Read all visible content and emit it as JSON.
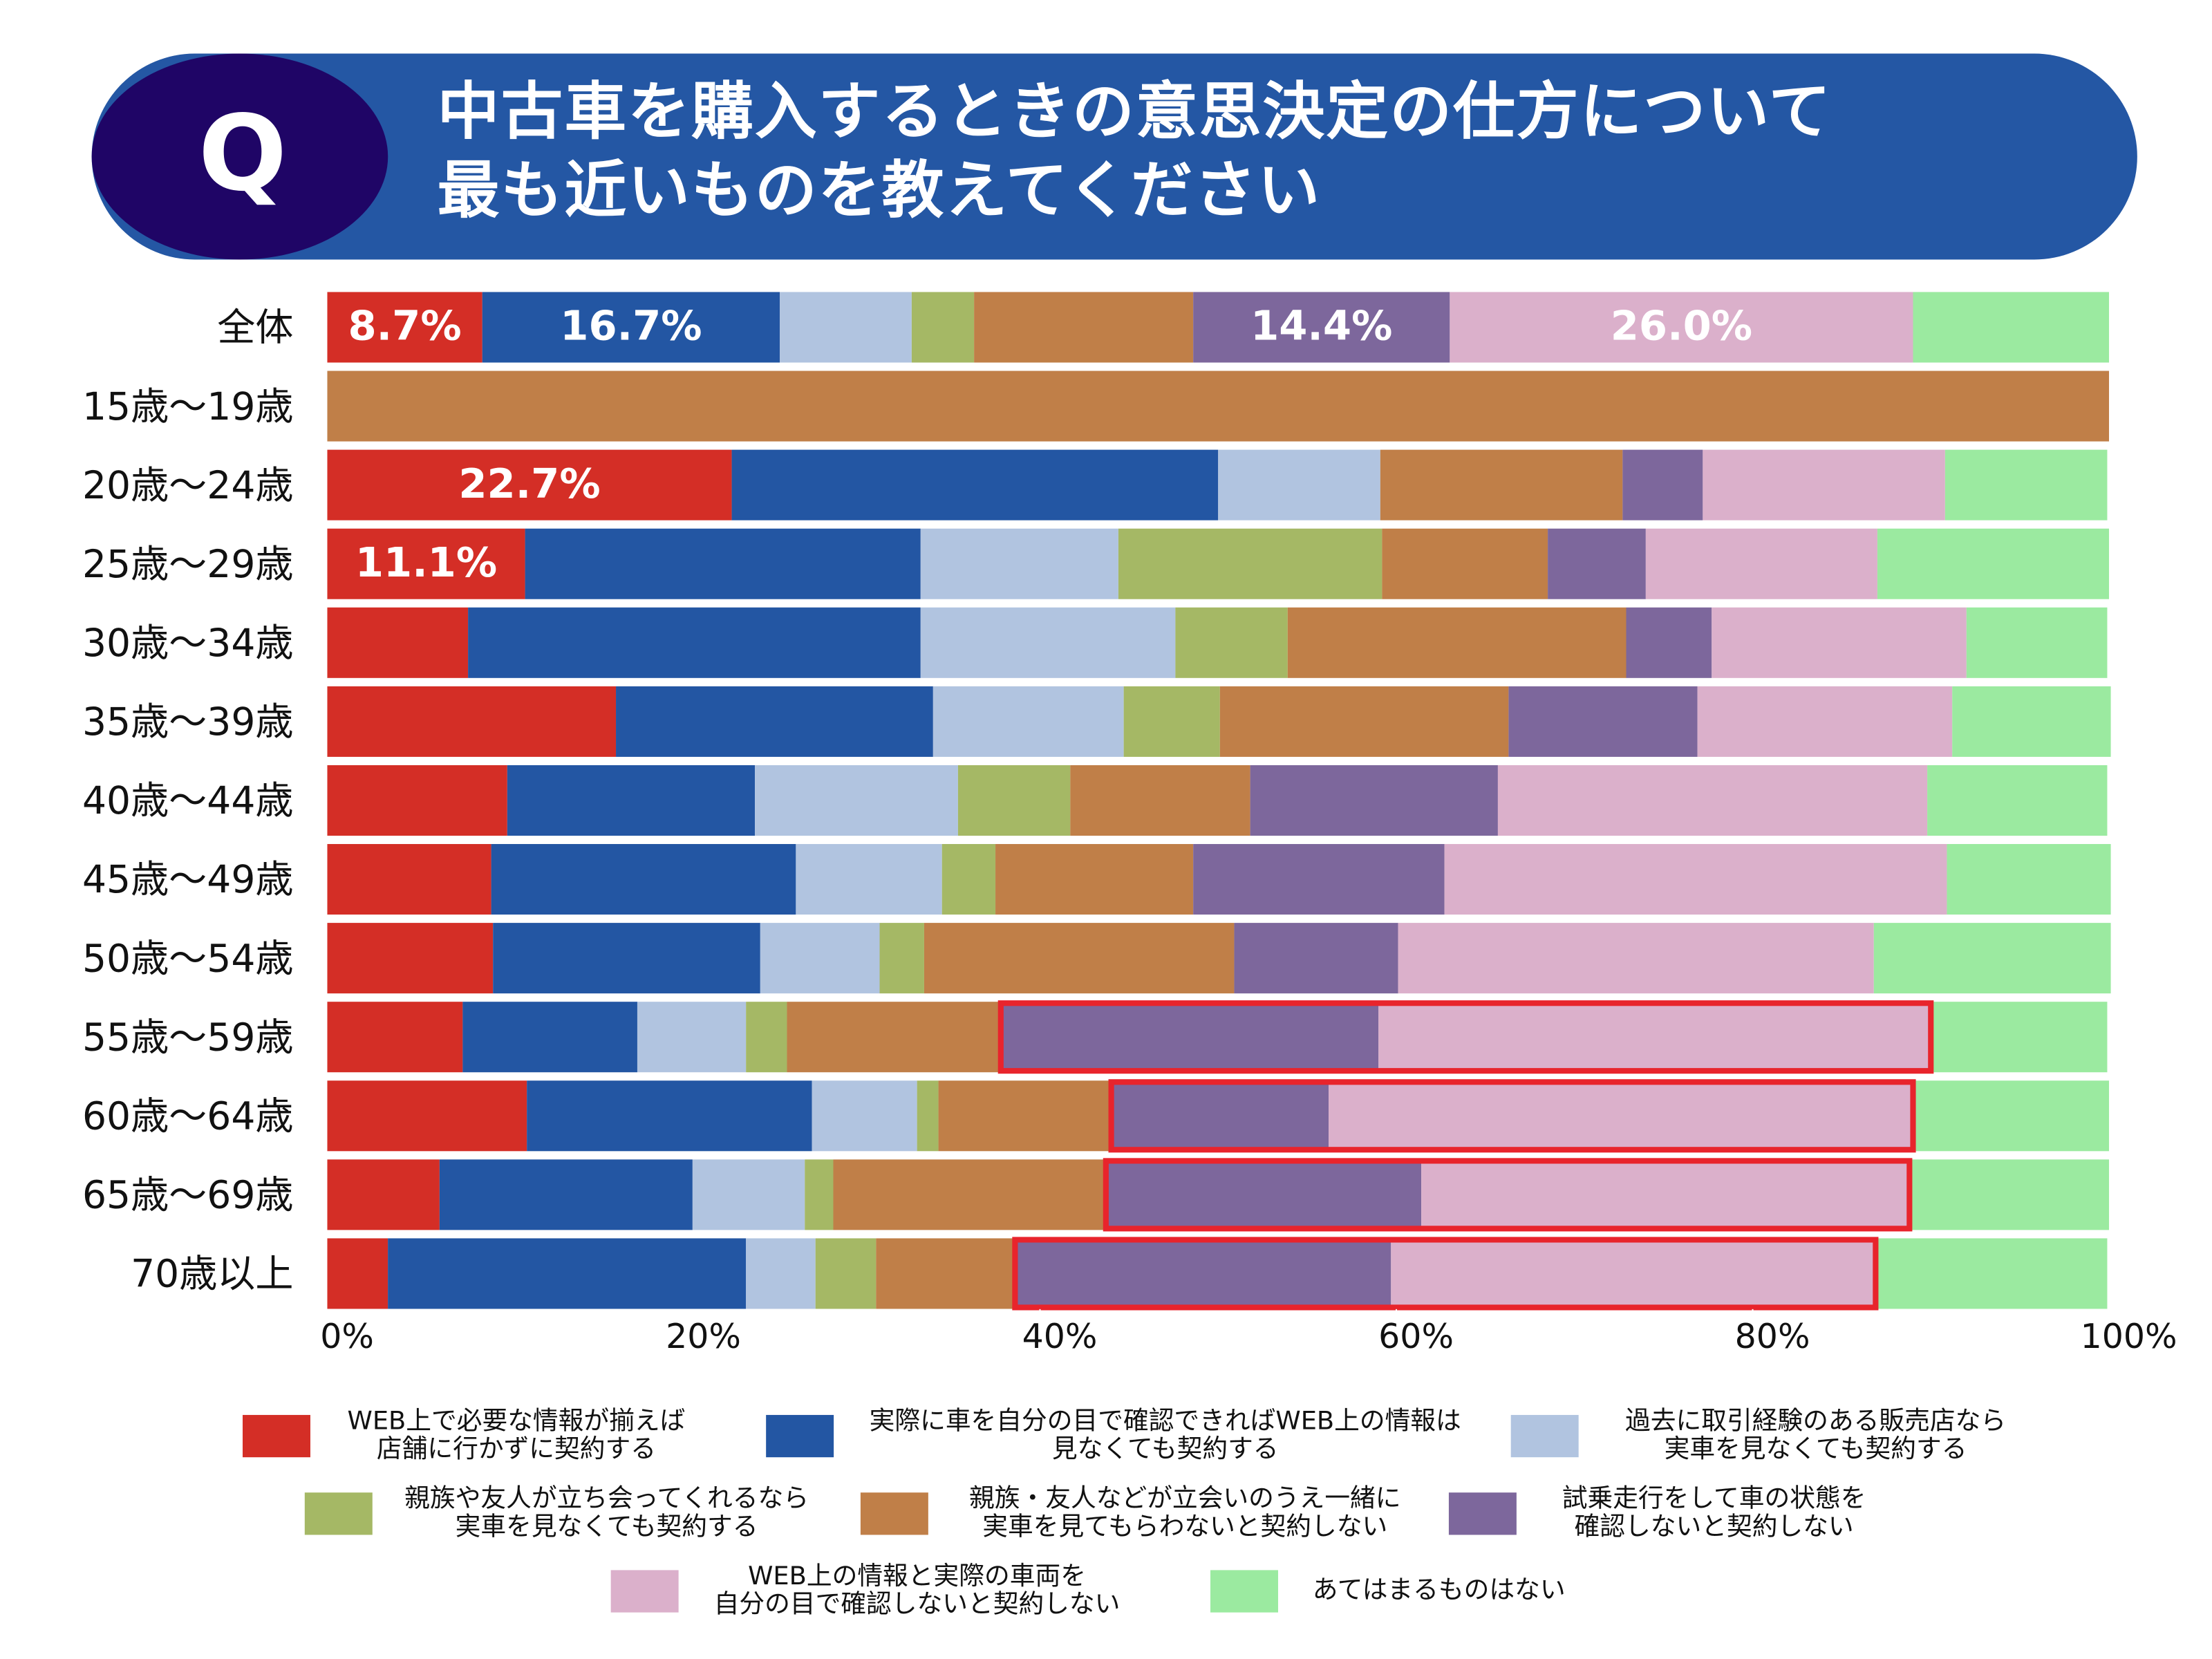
{
  "badge": "Q",
  "chart_data": {
    "type": "stacked_barh",
    "title": "中古車を購入するときの意思決定の仕方について\n最も近いものを教えてください",
    "categories": [
      "全体",
      "15歳〜19歳",
      "20歳〜24歳",
      "25歳〜29歳",
      "30歳〜34歳",
      "35歳〜39歳",
      "40歳〜44歳",
      "45歳〜49歳",
      "50歳〜54歳",
      "55歳〜59歳",
      "60歳〜64歳",
      "65歳〜69歳",
      "70歳以上"
    ],
    "xlim": [
      0,
      100
    ],
    "xticks": [
      {
        "value": 0,
        "label": "0%"
      },
      {
        "value": 20,
        "label": "20%"
      },
      {
        "value": 40,
        "label": "40%"
      },
      {
        "value": 60,
        "label": "60%"
      },
      {
        "value": 80,
        "label": "80%"
      },
      {
        "value": 100,
        "label": "100%"
      }
    ],
    "series": [
      {
        "name": "WEB上で必要な情報が揃えば\n店舗に行かずに契約する",
        "color": "#d42e26",
        "values": [
          8.7,
          0,
          22.7,
          11.1,
          7.9,
          16.2,
          10.1,
          9.2,
          9.3,
          7.6,
          11.2,
          6.3,
          3.4
        ],
        "value_labels": [
          "8.7%",
          null,
          "22.7%",
          "11.1%",
          null,
          null,
          null,
          null,
          null,
          null,
          null,
          null,
          null
        ]
      },
      {
        "name": "実際に車を自分の目で確認できればWEB上の情報は\n見なくても契約する",
        "color": "#2356a3",
        "values": [
          16.7,
          0,
          27.3,
          22.2,
          25.4,
          17.8,
          13.9,
          17.1,
          15.0,
          9.8,
          16.0,
          14.2,
          20.1
        ],
        "value_labels": [
          "16.7%",
          null,
          null,
          null,
          null,
          null,
          null,
          null,
          null,
          null,
          null,
          null,
          null
        ]
      },
      {
        "name": "過去に取引経験のある販売店なら\n実車を見なくても契約する",
        "color": "#b1c4e0",
        "values": [
          7.4,
          0,
          9.1,
          11.1,
          14.3,
          10.7,
          11.4,
          8.2,
          6.7,
          6.1,
          5.9,
          6.3,
          3.9
        ]
      },
      {
        "name": "親族や友人が立ち会ってくれるなら\n実車を見なくても契約する",
        "color": "#a5b865",
        "values": [
          3.5,
          0,
          0,
          14.8,
          6.3,
          5.4,
          6.3,
          3.0,
          2.5,
          2.3,
          1.2,
          1.6,
          3.4
        ]
      },
      {
        "name": "親族・友人などが立会いのうえ一緒に\n実車を見てもらわないと契約しない",
        "color": "#c07f48",
        "values": [
          12.3,
          100,
          13.6,
          9.3,
          19.0,
          16.2,
          10.1,
          11.1,
          17.4,
          12.0,
          9.7,
          15.3,
          7.8
        ]
      },
      {
        "name": "試乗走行をして車の状態を\n確認しないと契約しない",
        "color": "#7d679c",
        "values": [
          14.4,
          0,
          4.5,
          5.5,
          4.8,
          10.6,
          13.9,
          14.1,
          9.2,
          21.2,
          12.2,
          17.7,
          21.1
        ],
        "value_labels": [
          "14.4%",
          null,
          null,
          null,
          null,
          null,
          null,
          null,
          null,
          null,
          null,
          null,
          null
        ]
      },
      {
        "name": "WEB上の情報と実際の車両を\n自分の目で確認しないと契約しない",
        "color": "#dbb0cb",
        "values": [
          26.0,
          0,
          13.6,
          13.0,
          14.3,
          14.3,
          24.1,
          28.2,
          26.7,
          31.0,
          32.8,
          27.4,
          27.2
        ],
        "value_labels": [
          "26.0%",
          null,
          null,
          null,
          null,
          null,
          null,
          null,
          null,
          null,
          null,
          null,
          null
        ]
      },
      {
        "name": "あてはまるものはない",
        "color": "#9beaa0",
        "values": [
          11.0,
          0,
          9.1,
          13.0,
          7.9,
          8.9,
          10.1,
          9.2,
          13.3,
          9.9,
          11.0,
          11.2,
          13.0
        ]
      }
    ]
  }
}
